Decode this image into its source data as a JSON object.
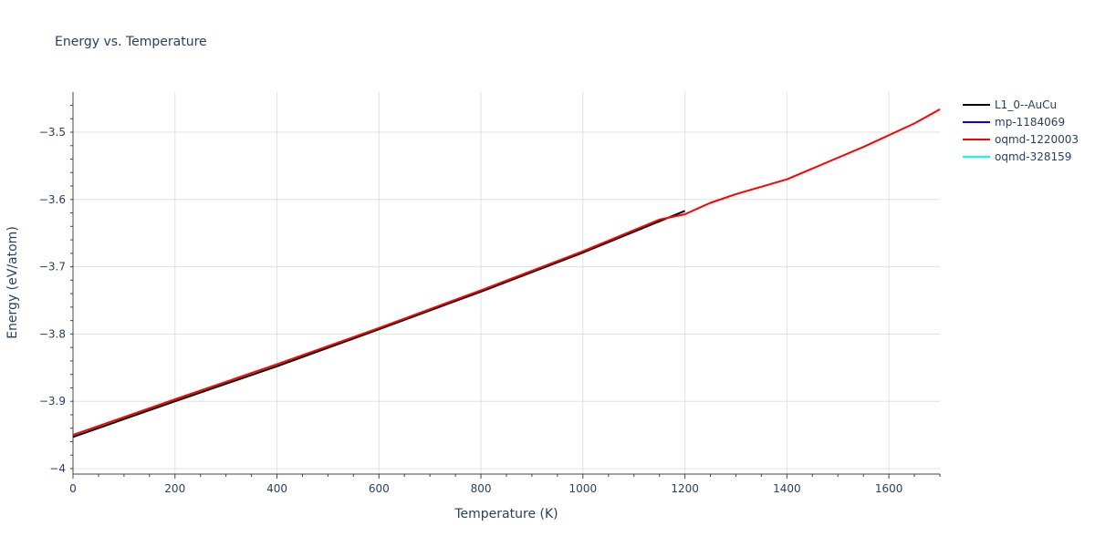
{
  "chart_data": {
    "type": "line",
    "title": "Energy vs. Temperature",
    "xlabel": "Temperature (K)",
    "ylabel": "Energy (eV/atom)",
    "xlim": [
      0,
      1700
    ],
    "ylim": [
      -4.01,
      -3.44
    ],
    "grid": true,
    "legend_position": "right",
    "x_ticks": [
      0,
      200,
      400,
      600,
      800,
      1000,
      1200,
      1400,
      1600
    ],
    "y_ticks": [
      -4,
      -3.9,
      -3.8,
      -3.7,
      -3.6,
      -3.5
    ],
    "y_tick_labels": [
      "−4",
      "−3.9",
      "−3.8",
      "−3.7",
      "−3.6",
      "−3.5"
    ],
    "series": [
      {
        "name": "L1_0--AuCu",
        "color": "#000000",
        "x": [
          0,
          200,
          400,
          600,
          800,
          1000,
          1200
        ],
        "y": [
          -3.953,
          -3.9,
          -3.848,
          -3.793,
          -3.737,
          -3.679,
          -3.617
        ]
      },
      {
        "name": "mp-1184069",
        "color": "#0000ff",
        "x": [],
        "y": []
      },
      {
        "name": "oqmd-1220003",
        "color": "#ff0000",
        "x": [
          0,
          200,
          400,
          600,
          800,
          1000,
          1150,
          1200,
          1250,
          1300,
          1400,
          1500,
          1550,
          1650,
          1700
        ],
        "y": [
          -3.95,
          -3.897,
          -3.845,
          -3.791,
          -3.735,
          -3.677,
          -3.63,
          -3.622,
          -3.605,
          -3.592,
          -3.57,
          -3.538,
          -3.522,
          -3.487,
          -3.466
        ]
      },
      {
        "name": "oqmd-328159",
        "color": "#00ffff",
        "x": [],
        "y": []
      }
    ]
  }
}
